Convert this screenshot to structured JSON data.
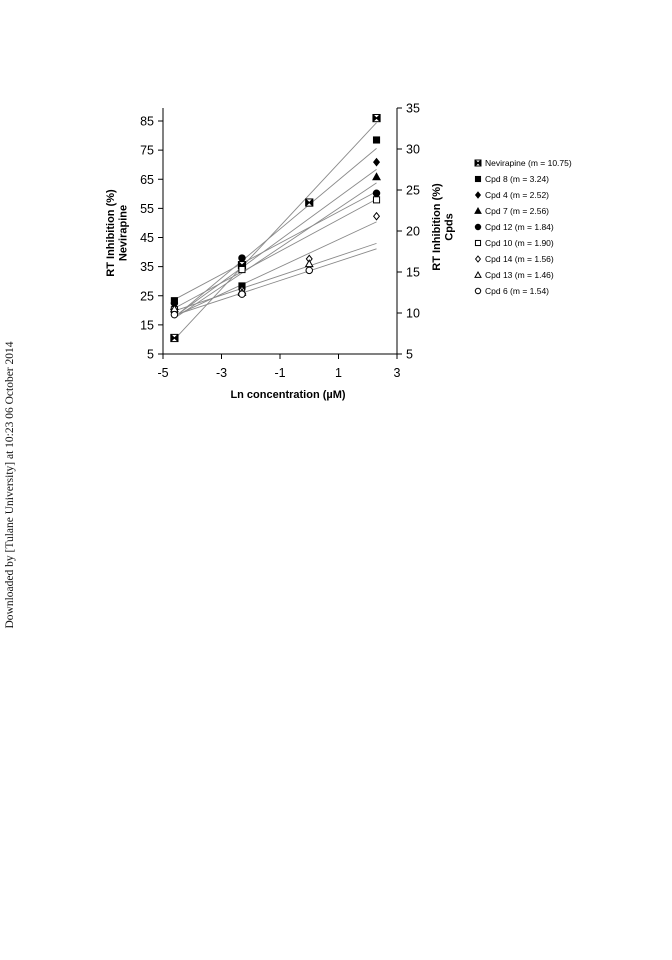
{
  "watermark": "Downloaded by [Tulane University] at 10:23 06 October 2014",
  "chart_data": {
    "type": "line",
    "xlabel": "Ln concentration (µM)",
    "ylabel_left": [
      "RT Inhibition (%)",
      "Nevirapine"
    ],
    "ylabel_right": [
      "RT Inhibition (%)",
      "Cpds"
    ],
    "xlim": [
      -5,
      3
    ],
    "x_ticks": [
      "-5",
      "-3",
      "-1",
      "1",
      "3"
    ],
    "ylim_left": [
      5,
      90
    ],
    "y_ticks_left": [
      "5",
      "15",
      "25",
      "35",
      "45",
      "55",
      "65",
      "75",
      "85"
    ],
    "ylim_right": [
      5,
      35
    ],
    "y_ticks_right": [
      "5",
      "10",
      "15",
      "20",
      "25",
      "30",
      "35"
    ],
    "x": [
      -4.61,
      -2.3,
      0,
      2.3
    ],
    "legend_position": "right",
    "series": [
      {
        "name": "Nevirapine (m = 10.75)",
        "axis": "left",
        "marker": "box-x",
        "values": [
          10.5,
          35.5,
          57,
          86
        ]
      },
      {
        "name": "Cpd 8 (m = 3.24)",
        "axis": "right",
        "marker": "square-filled",
        "values": [
          11.5,
          13.3,
          null,
          31.1
        ]
      },
      {
        "name": "Cpd 4 (m = 2.52)",
        "axis": "right",
        "marker": "diamond-filled",
        "values": [
          11.3,
          12.9,
          null,
          28.4
        ]
      },
      {
        "name": "Cpd 7 (m = 2.56)",
        "axis": "right",
        "marker": "triangle-filled",
        "values": [
          10.8,
          12.7,
          null,
          26.6
        ]
      },
      {
        "name": "Cpd 12 (m = 1.84)",
        "axis": "right",
        "marker": "circle-filled",
        "values": [
          11.2,
          16.7,
          null,
          24.6
        ]
      },
      {
        "name": "Cpd 10 (m = 1.90)",
        "axis": "right",
        "marker": "square-open",
        "values": [
          10.4,
          15.3,
          null,
          23.8
        ]
      },
      {
        "name": "Cpd 14 (m = 1.56)",
        "axis": "right",
        "marker": "diamond-open",
        "values": [
          10.3,
          12.8,
          16.6,
          21.8
        ]
      },
      {
        "name": "Cpd 13 (m = 1.46)",
        "axis": "right",
        "marker": "triangle-open",
        "values": [
          10.5,
          12.5,
          16.0,
          null
        ]
      },
      {
        "name": "Cpd 6 (m = 1.54)",
        "axis": "right",
        "marker": "circle-open",
        "values": [
          9.8,
          12.3,
          15.2,
          null
        ]
      }
    ]
  }
}
